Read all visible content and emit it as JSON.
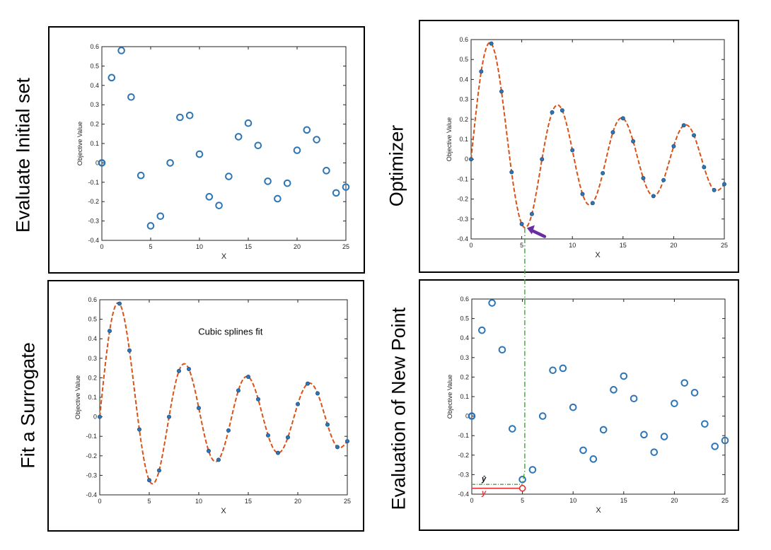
{
  "labels": {
    "evaluate": "Evaluate Initial set",
    "optimizer": "Optimizer",
    "surrogate": "Fit a Surrogate",
    "new_point": "Evaluation of New Point"
  },
  "annotations": {
    "spline_note": "Cubic splines fit",
    "y_hat": "ŷ",
    "y": "y"
  },
  "colors": {
    "marker": "#2e75b6",
    "curve": "#d95319",
    "arrow": "#6a2ca0",
    "guide": "#3aaa35",
    "new_point": "#e03030"
  },
  "chart_data": [
    {
      "type": "scatter",
      "xlabel": "X",
      "ylabel": "Objective Value",
      "xlim": [
        0,
        25
      ],
      "ylim": [
        -0.4,
        0.6
      ],
      "xticks": [
        0,
        5,
        10,
        15,
        20,
        25
      ],
      "yticks": [
        -0.4,
        -0.3,
        -0.2,
        -0.1,
        0,
        0.1,
        0.2,
        0.3,
        0.4,
        0.5,
        0.6
      ],
      "x": [
        0,
        1,
        2,
        3,
        4,
        5,
        6,
        7,
        8,
        9,
        10,
        11,
        12,
        13,
        14,
        15,
        16,
        17,
        18,
        19,
        20,
        21,
        22,
        23,
        24,
        25
      ],
      "y": [
        0,
        0.44,
        0.58,
        0.34,
        -0.065,
        -0.325,
        -0.275,
        0,
        0.235,
        0.245,
        0.045,
        -0.175,
        -0.22,
        -0.07,
        0.135,
        0.205,
        0.09,
        -0.095,
        -0.185,
        -0.105,
        0.065,
        0.17,
        0.12,
        -0.04,
        -0.155,
        -0.125
      ]
    },
    {
      "type": "line",
      "xlabel": "X",
      "ylabel": "Objective Value",
      "xlim": [
        0,
        25
      ],
      "ylim": [
        -0.4,
        0.6
      ],
      "xticks": [
        0,
        5,
        10,
        15,
        20,
        25
      ],
      "yticks": [
        -0.4,
        -0.3,
        -0.2,
        -0.1,
        0,
        0.1,
        0.2,
        0.3,
        0.4,
        0.5,
        0.6
      ],
      "x": [
        0,
        1,
        2,
        3,
        4,
        5,
        6,
        7,
        8,
        9,
        10,
        11,
        12,
        13,
        14,
        15,
        16,
        17,
        18,
        19,
        20,
        21,
        22,
        23,
        24,
        25
      ],
      "y": [
        0,
        0.44,
        0.58,
        0.34,
        -0.065,
        -0.325,
        -0.275,
        0,
        0.235,
        0.245,
        0.045,
        -0.175,
        -0.22,
        -0.07,
        0.135,
        0.205,
        0.09,
        -0.095,
        -0.185,
        -0.105,
        0.065,
        0.17,
        0.12,
        -0.04,
        -0.155,
        -0.125
      ]
    },
    {
      "type": "line",
      "xlabel": "X",
      "ylabel": "Objective Value",
      "xlim": [
        0,
        25
      ],
      "ylim": [
        -0.4,
        0.6
      ],
      "xticks": [
        0,
        5,
        10,
        15,
        20,
        25
      ],
      "yticks": [
        -0.4,
        -0.3,
        -0.2,
        -0.1,
        0,
        0.1,
        0.2,
        0.3,
        0.4,
        0.5,
        0.6
      ],
      "x": [
        0,
        1,
        2,
        3,
        4,
        5,
        6,
        7,
        8,
        9,
        10,
        11,
        12,
        13,
        14,
        15,
        16,
        17,
        18,
        19,
        20,
        21,
        22,
        23,
        24,
        25
      ],
      "y": [
        0,
        0.44,
        0.58,
        0.34,
        -0.065,
        -0.325,
        -0.275,
        0,
        0.235,
        0.245,
        0.045,
        -0.175,
        -0.22,
        -0.07,
        0.135,
        0.205,
        0.09,
        -0.095,
        -0.185,
        -0.105,
        0.065,
        0.17,
        0.12,
        -0.04,
        -0.155,
        -0.125
      ],
      "optimum": {
        "x": 5.3,
        "y": -0.345
      }
    },
    {
      "type": "scatter",
      "xlabel": "X",
      "ylabel": "Objective Value",
      "xlim": [
        0,
        25
      ],
      "ylim": [
        -0.4,
        0.6
      ],
      "xticks": [
        0,
        5,
        10,
        15,
        20,
        25
      ],
      "yticks": [
        -0.4,
        -0.3,
        -0.2,
        -0.1,
        0,
        0.1,
        0.2,
        0.3,
        0.4,
        0.5,
        0.6
      ],
      "x": [
        0,
        1,
        2,
        3,
        4,
        5,
        6,
        7,
        8,
        9,
        10,
        11,
        12,
        13,
        14,
        15,
        16,
        17,
        18,
        19,
        20,
        21,
        22,
        23,
        24,
        25
      ],
      "y": [
        0,
        0.44,
        0.58,
        0.34,
        -0.065,
        -0.325,
        -0.275,
        0,
        0.235,
        0.245,
        0.045,
        -0.175,
        -0.22,
        -0.07,
        0.135,
        0.205,
        0.09,
        -0.095,
        -0.185,
        -0.105,
        0.065,
        0.17,
        0.12,
        -0.04,
        -0.155,
        -0.125
      ],
      "new_point": {
        "x": 5,
        "y_hat": -0.35,
        "y": -0.37
      }
    }
  ]
}
